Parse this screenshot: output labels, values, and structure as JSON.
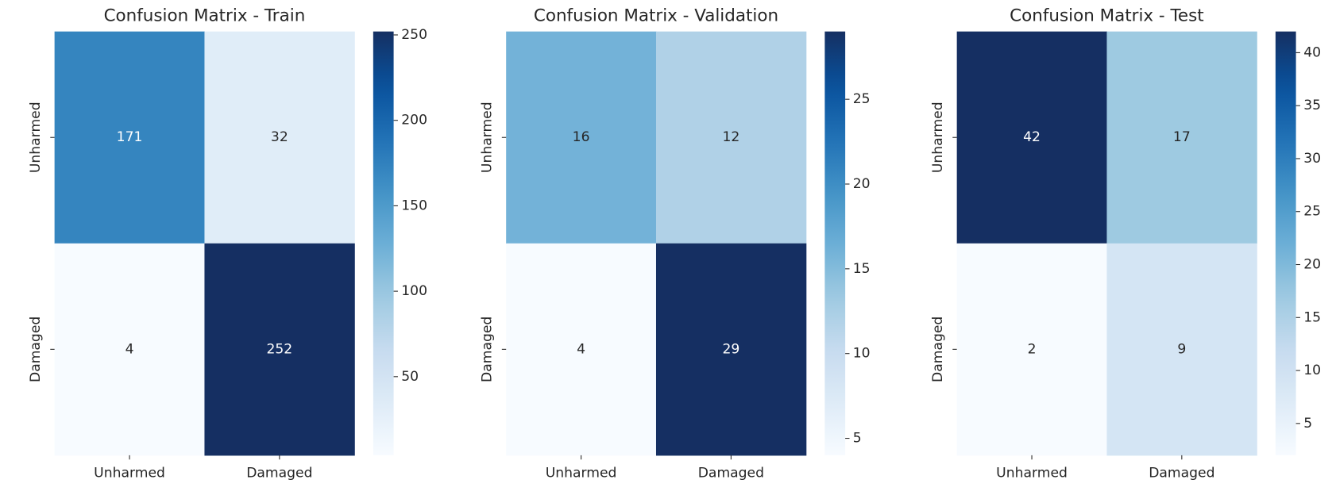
{
  "chart_data": [
    {
      "type": "heatmap",
      "title": "Confusion Matrix - Train",
      "x_categories": [
        "Unharmed",
        "Damaged"
      ],
      "y_categories": [
        "Unharmed",
        "Damaged"
      ],
      "values": [
        [
          171,
          32
        ],
        [
          4,
          252
        ]
      ],
      "colorbar_ticks": [
        50,
        100,
        150,
        200,
        250
      ],
      "colormap": [
        "#f7fbff",
        "#deebf7",
        "#c6dbef",
        "#9ecae1",
        "#6baed6",
        "#4292c6",
        "#2171b5",
        "#08519c",
        "#152f62"
      ]
    },
    {
      "type": "heatmap",
      "title": "Confusion Matrix - Validation",
      "x_categories": [
        "Unharmed",
        "Damaged"
      ],
      "y_categories": [
        "Unharmed",
        "Damaged"
      ],
      "values": [
        [
          16,
          12
        ],
        [
          4,
          29
        ]
      ],
      "colorbar_ticks": [
        5,
        10,
        15,
        20,
        25
      ],
      "colormap": [
        "#f7fbff",
        "#deebf7",
        "#c6dbef",
        "#9ecae1",
        "#6baed6",
        "#4292c6",
        "#2171b5",
        "#08519c",
        "#152f62"
      ]
    },
    {
      "type": "heatmap",
      "title": "Confusion Matrix - Test",
      "x_categories": [
        "Unharmed",
        "Damaged"
      ],
      "y_categories": [
        "Unharmed",
        "Damaged"
      ],
      "values": [
        [
          42,
          17
        ],
        [
          2,
          9
        ]
      ],
      "colorbar_ticks": [
        5,
        10,
        15,
        20,
        25,
        30,
        35,
        40
      ],
      "colormap": [
        "#f7fbff",
        "#deebf7",
        "#c6dbef",
        "#9ecae1",
        "#6baed6",
        "#4292c6",
        "#2171b5",
        "#08519c",
        "#152f62"
      ]
    }
  ]
}
